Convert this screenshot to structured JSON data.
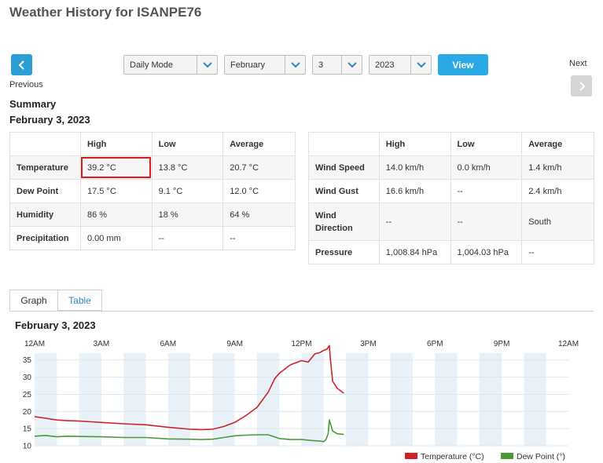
{
  "page": {
    "title": "Weather History for ISANPE76"
  },
  "nav": {
    "previous_label": "Previous",
    "next_label": "Next"
  },
  "controls": {
    "mode": "Daily Mode",
    "month": "February",
    "day": "3",
    "year": "2023",
    "view_label": "View"
  },
  "summary": {
    "heading": "Summary",
    "date": "February 3, 2023",
    "left_table": {
      "headers": [
        "High",
        "Low",
        "Average"
      ],
      "rows": [
        {
          "label": "Temperature",
          "values": [
            "39.2 °C",
            "13.8 °C",
            "20.7 °C"
          ]
        },
        {
          "label": "Dew Point",
          "values": [
            "17.5 °C",
            "9.1 °C",
            "12.0 °C"
          ]
        },
        {
          "label": "Humidity",
          "values": [
            "86 %",
            "18 %",
            "64 %"
          ]
        },
        {
          "label": "Precipitation",
          "values": [
            "0.00 mm",
            "--",
            "--"
          ]
        }
      ]
    },
    "right_table": {
      "headers": [
        "High",
        "Low",
        "Average"
      ],
      "rows": [
        {
          "label": "Wind Speed",
          "values": [
            "14.0 km/h",
            "0.0 km/h",
            "1.4 km/h"
          ]
        },
        {
          "label": "Wind Gust",
          "values": [
            "16.6 km/h",
            "--",
            "2.4 km/h"
          ]
        },
        {
          "label": "Wind Direction",
          "values": [
            "--",
            "--",
            "South"
          ]
        },
        {
          "label": "Pressure",
          "values": [
            "1,008.84 hPa",
            "1,004.03 hPa",
            "--"
          ]
        }
      ]
    },
    "highlight_color": "#e0191f"
  },
  "tabs": [
    {
      "label": "Graph",
      "active": true
    },
    {
      "label": "Table",
      "active": false
    }
  ],
  "chart": {
    "date": "February 3, 2023"
  },
  "chart_data": {
    "type": "line",
    "x_ticks": [
      "12AM",
      "3AM",
      "6AM",
      "9AM",
      "12PM",
      "3PM",
      "6PM",
      "9PM",
      "12AM"
    ],
    "x_range_hours": [
      0,
      24
    ],
    "y_ticks": [
      10,
      15,
      20,
      25,
      30,
      35
    ],
    "ylim": [
      10,
      37
    ],
    "legend_position": "bottom-right",
    "series": [
      {
        "name": "Temperature (°C)",
        "color": "#d0202a",
        "x": [
          0,
          0.5,
          1,
          1.5,
          2,
          3,
          4,
          5,
          6,
          7,
          7.5,
          8,
          8.5,
          9,
          9.5,
          10,
          10.5,
          10.8,
          11,
          11.5,
          12,
          12.3,
          12.6,
          12.8,
          13,
          13.15,
          13.25,
          13.3,
          13.4,
          13.6,
          13.9
        ],
        "y": [
          18.5,
          18,
          17.5,
          17.3,
          17.2,
          16.8,
          16.4,
          16.1,
          15.4,
          14.8,
          14.7,
          14.8,
          15.6,
          16.8,
          18.8,
          21.2,
          25.6,
          29.6,
          31.1,
          33.6,
          34.8,
          34.4,
          36.8,
          37.1,
          37.8,
          38.2,
          39.2,
          35.2,
          28.8,
          26.8,
          25.3
        ]
      },
      {
        "name": "Dew Point (°)",
        "color": "#4a9a3a",
        "x": [
          0,
          0.5,
          1,
          1.5,
          2,
          3,
          4,
          5,
          6,
          7,
          7.5,
          8,
          8.5,
          9,
          9.5,
          10,
          10.5,
          11,
          11.5,
          12,
          12.5,
          12.8,
          13,
          13.1,
          13.2,
          13.25,
          13.4,
          13.6,
          13.9
        ],
        "y": [
          12.8,
          13,
          12.6,
          12.8,
          12.7,
          12.6,
          12.4,
          12.4,
          12,
          11.9,
          11.8,
          11.9,
          12.4,
          12.9,
          13.1,
          13.2,
          13.2,
          12.1,
          11.8,
          11.8,
          11.5,
          11.4,
          11.2,
          11.8,
          13.5,
          17.5,
          14.3,
          13.5,
          13.3
        ]
      }
    ]
  }
}
